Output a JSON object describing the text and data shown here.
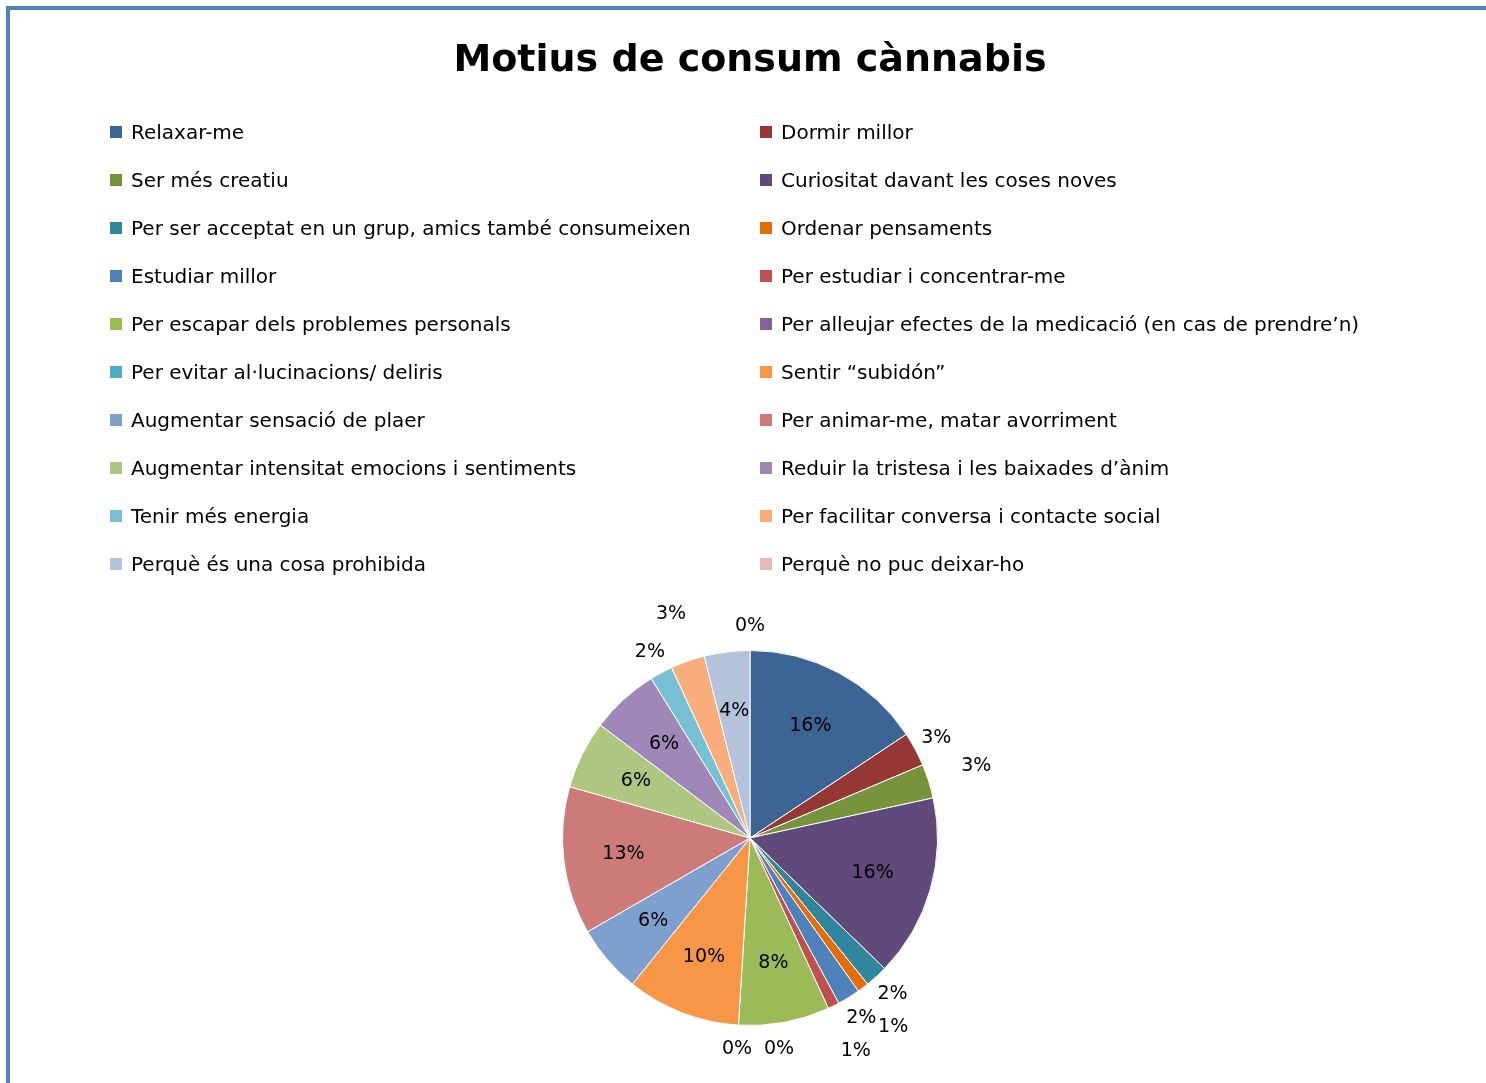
{
  "chart_data": {
    "type": "pie",
    "title": "Motius de consum cànnabis",
    "legend": "top",
    "categories": [
      "Relaxar-me",
      "Dormir millor",
      "Ser més creatiu",
      "Curiositat davant les coses noves",
      "Per ser acceptat en un grup, amics també consumeixen",
      "Ordenar pensaments",
      "Estudiar millor",
      "Per estudiar i concentrar-me",
      "Per escapar dels problemes personals",
      "Per alleujar efectes de la medicació (en cas de prendre’n)",
      "Per evitar al·lucinacions/ deliris",
      "Sentir “subidón”",
      "Augmentar sensació de plaer",
      "Per animar-me, matar avorriment",
      "Augmentar intensitat emocions i sentiments",
      "Reduir la tristesa i les baixades d’ànim",
      "Tenir més energia",
      "Per facilitar conversa i contacte social",
      "Perquè és una cosa prohibida",
      "Perquè no puc deixar-ho"
    ],
    "values": [
      16,
      3,
      3,
      16,
      2,
      1,
      2,
      1,
      8,
      0,
      0,
      10,
      6,
      13,
      6,
      6,
      2,
      3,
      4,
      0
    ],
    "value_labels": [
      "16%",
      "3%",
      "3%",
      "16%",
      "2%",
      "1%",
      "2%",
      "1%",
      "8%",
      "0%",
      "0%",
      "10%",
      "6%",
      "13%",
      "6%",
      "6%",
      "2%",
      "3%",
      "4%",
      "0%"
    ],
    "colors": [
      "#3c6494",
      "#953735",
      "#77933c",
      "#604a7b",
      "#31859c",
      "#e46c0a",
      "#4f81bd",
      "#c0504d",
      "#9bbb59",
      "#8064a2",
      "#4bacc6",
      "#f79646",
      "#7f9fcf",
      "#cd7b78",
      "#afc683",
      "#9f88b8",
      "#77bfd3",
      "#f9ad7b",
      "#b4c2dc",
      "#e5b9b8"
    ]
  }
}
